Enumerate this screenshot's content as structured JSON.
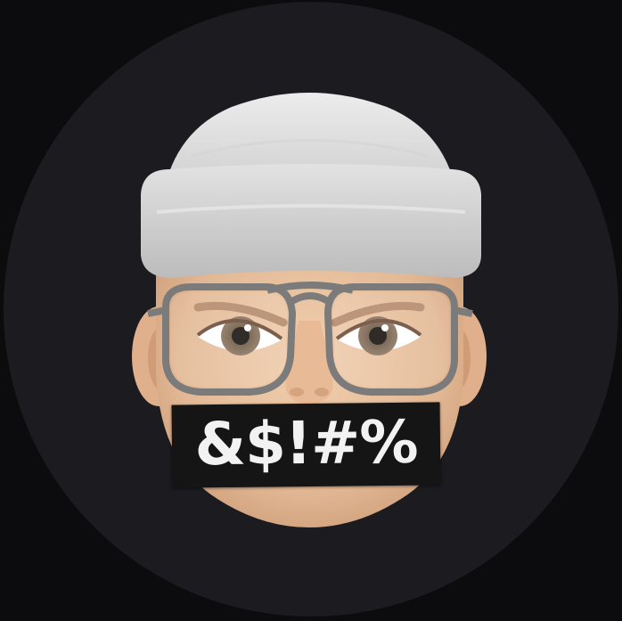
{
  "avatar": {
    "censor_text": "&$!#%"
  },
  "colors": {
    "page_background": "#0c0c0e",
    "circle_background": "#1b1b20",
    "beanie": "#d9d9d9",
    "skin": "#e7bf9c",
    "glasses_frame": "#7b7b7b",
    "censor_bar": "#151515",
    "censor_text": "#f2f2f2"
  },
  "icons": {
    "character": "memoji-face-icon"
  }
}
